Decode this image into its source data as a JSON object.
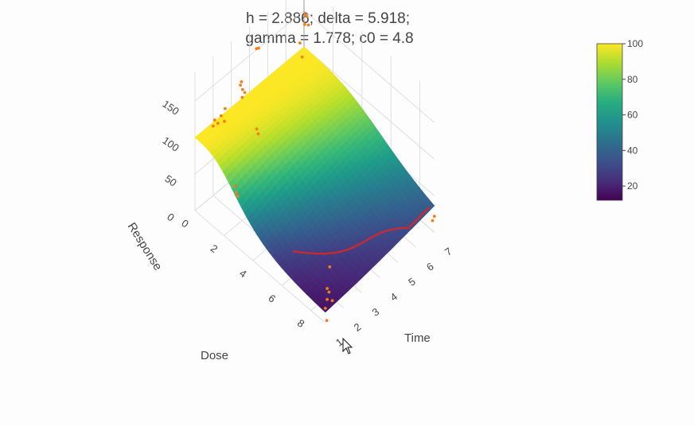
{
  "chart_data": {
    "type": "surface",
    "title_lines": [
      "h = 2.886; delta = 5.918;",
      "gamma = 1.778; c0 = 4.8"
    ],
    "axes": {
      "x": {
        "label": "Dose",
        "ticks": [
          "0",
          "2",
          "4",
          "6",
          "8"
        ],
        "range": [
          0,
          9
        ]
      },
      "y": {
        "label": "Time",
        "ticks": [
          "1",
          "2",
          "3",
          "4",
          "5",
          "6",
          "7"
        ],
        "range": [
          1,
          7
        ]
      },
      "z": {
        "label": "Response",
        "ticks": [
          "0",
          "50",
          "100",
          "150"
        ],
        "range": [
          0,
          190
        ]
      }
    },
    "surface": {
      "description_free_params": {
        "h": 2.886,
        "delta": 5.918,
        "gamma": 1.778,
        "c0": 4.8
      },
      "z_high": 100,
      "z_low": 10
    },
    "colorbar": {
      "ticks": [
        "20",
        "40",
        "60",
        "80",
        "100"
      ],
      "min": 12,
      "max": 100
    },
    "colors": {
      "points": "#f57c16",
      "curve": "#d62728",
      "grid": "#d8d8d8"
    },
    "scatter_points": [
      [
        0.1,
        7,
        185
      ],
      [
        0.2,
        6.9,
        150
      ],
      [
        0.2,
        7,
        145
      ],
      [
        0.3,
        6.8,
        140
      ],
      [
        0.3,
        7,
        135
      ],
      [
        0.5,
        6.5,
        105
      ],
      [
        0.6,
        6.3,
        130
      ],
      [
        0,
        4.5,
        150
      ],
      [
        0.1,
        4.3,
        155
      ],
      [
        0,
        3.5,
        120
      ],
      [
        0.2,
        3.4,
        130
      ],
      [
        0.3,
        3.5,
        115
      ],
      [
        0.4,
        3.3,
        125
      ],
      [
        0.5,
        3.2,
        118
      ],
      [
        0.3,
        2.2,
        110
      ],
      [
        0.2,
        2.1,
        100
      ],
      [
        0.1,
        2,
        105
      ],
      [
        0,
        2,
        95
      ],
      [
        0.4,
        2.3,
        102
      ],
      [
        0.2,
        2.5,
        112
      ],
      [
        1,
        3.6,
        75
      ],
      [
        1.1,
        3.6,
        70
      ],
      [
        2,
        1.6,
        55
      ],
      [
        2.1,
        1.6,
        48
      ],
      [
        2.2,
        1.6,
        45
      ],
      [
        9,
        1.1,
        45
      ],
      [
        9,
        1.2,
        38
      ],
      [
        9,
        1.1,
        30
      ],
      [
        9.1,
        1.3,
        26
      ],
      [
        9,
        1.0,
        20
      ],
      [
        8.8,
        1.4,
        65
      ],
      [
        9.1,
        1.0,
        5
      ],
      [
        9,
        7,
        22
      ],
      [
        9,
        6.9,
        18
      ]
    ]
  },
  "cursor": "arrow-pointer"
}
